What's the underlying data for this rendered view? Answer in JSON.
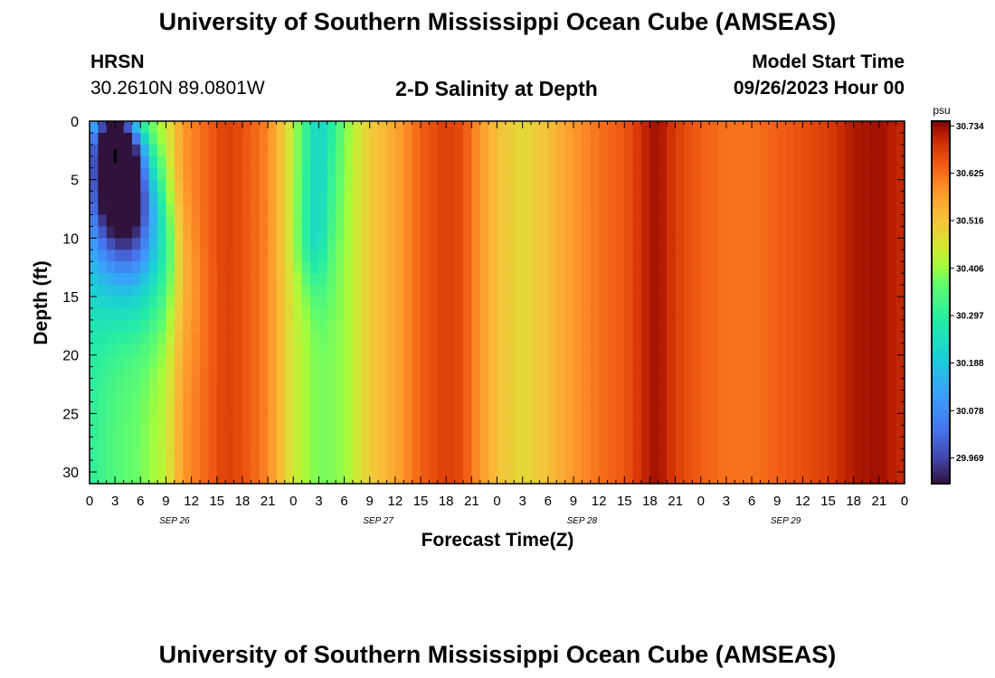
{
  "page": {
    "title": "University of Southern Mississippi Ocean Cube (AMSEAS)",
    "footer_title": "University of Southern Mississippi Ocean Cube (AMSEAS)",
    "station": "HRSN",
    "coordinates": "30.2610N  89.0801W",
    "chart_title": "2-D Salinity at Depth",
    "model_start_label": "Model Start Time",
    "model_start_value": "09/26/2023 Hour 00"
  },
  "chart_data": {
    "type": "heatmap",
    "title": "2-D Salinity at Depth",
    "xlabel": "Forecast Time(Z)",
    "ylabel": "Depth (ft)",
    "x_ticks": [
      "0",
      "3",
      "6",
      "9",
      "12",
      "15",
      "18",
      "21",
      "0",
      "3",
      "6",
      "9",
      "12",
      "15",
      "18",
      "21",
      "0",
      "3",
      "6",
      "9",
      "12",
      "15",
      "18",
      "21",
      "0",
      "3",
      "6",
      "9",
      "12",
      "15",
      "18",
      "21",
      "0"
    ],
    "date_labels": [
      "SEP 26",
      "SEP 27",
      "SEP 28",
      "SEP 29"
    ],
    "y_ticks": [
      "0",
      "5",
      "10",
      "15",
      "20",
      "25",
      "30"
    ],
    "ylim": [
      0,
      31
    ],
    "xlim_hours": [
      0,
      96
    ],
    "colorbar": {
      "unit": "psu",
      "ticks": [
        "30.734",
        "30.625",
        "30.516",
        "30.406",
        "30.297",
        "30.188",
        "30.078",
        "29.969"
      ],
      "range": [
        29.91,
        30.745
      ]
    },
    "background_salinity_by_hour": [
      [
        0,
        30.3
      ],
      [
        3,
        30.35
      ],
      [
        6,
        30.38
      ],
      [
        9,
        30.44
      ],
      [
        11,
        30.58
      ],
      [
        13,
        30.62
      ],
      [
        16,
        30.68
      ],
      [
        18,
        30.66
      ],
      [
        21,
        30.6
      ],
      [
        24,
        30.45
      ],
      [
        27,
        30.38
      ],
      [
        30,
        30.4
      ],
      [
        33,
        30.5
      ],
      [
        36,
        30.56
      ],
      [
        39,
        30.64
      ],
      [
        42,
        30.68
      ],
      [
        44,
        30.66
      ],
      [
        46,
        30.58
      ],
      [
        48,
        30.52
      ],
      [
        51,
        30.48
      ],
      [
        54,
        30.52
      ],
      [
        57,
        30.58
      ],
      [
        60,
        30.62
      ],
      [
        63,
        30.65
      ],
      [
        66,
        30.72
      ],
      [
        67,
        30.73
      ],
      [
        69,
        30.68
      ],
      [
        72,
        30.64
      ],
      [
        75,
        30.62
      ],
      [
        78,
        30.62
      ],
      [
        81,
        30.64
      ],
      [
        84,
        30.66
      ],
      [
        87,
        30.68
      ],
      [
        90,
        30.72
      ],
      [
        93,
        30.73
      ],
      [
        96,
        30.7
      ]
    ],
    "low_salinity_features": [
      {
        "center_hour": 3,
        "center_depth_ft": 3,
        "min_salinity": 29.91,
        "description": "fresh surface plume near SEP 26 hour 3"
      },
      {
        "center_hour": 27,
        "center_depth_ft": 7,
        "min_salinity": 30.24,
        "description": "fresher tongue near SEP 27 hour 3"
      }
    ]
  }
}
